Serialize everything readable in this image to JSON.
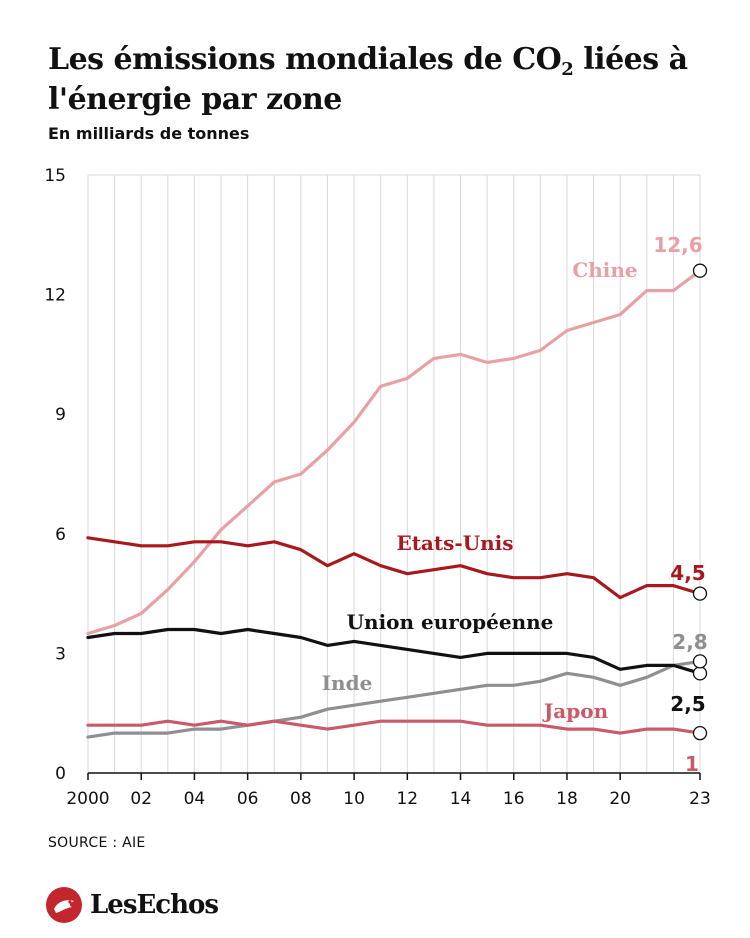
{
  "header": {
    "title_main": "Les émissions mondiales de CO",
    "title_sub": "2",
    "title_rest": " liées à l'énergie par zone",
    "subtitle": "En milliards de tonnes"
  },
  "footer": {
    "source": "SOURCE : AIE",
    "logo_text": "LesEchos"
  },
  "chart_data": {
    "type": "line",
    "ylim": [
      0,
      15
    ],
    "y_ticks": [
      0,
      3,
      6,
      9,
      12,
      15
    ],
    "x_ticks": [
      2000,
      2002,
      2004,
      2006,
      2008,
      2010,
      2012,
      2014,
      2016,
      2018,
      2020,
      2023
    ],
    "x_tick_labels": [
      "2000",
      "02",
      "04",
      "06",
      "08",
      "10",
      "12",
      "14",
      "16",
      "18",
      "20",
      "23"
    ],
    "x": [
      2000,
      2001,
      2002,
      2003,
      2004,
      2005,
      2006,
      2007,
      2008,
      2009,
      2010,
      2011,
      2012,
      2013,
      2014,
      2015,
      2016,
      2017,
      2018,
      2019,
      2020,
      2021,
      2022,
      2023
    ],
    "grid": "vertical",
    "series": [
      {
        "name": "Chine",
        "color": "#e8a0a4",
        "end_label": "12,6",
        "values": [
          3.5,
          3.7,
          4.0,
          4.6,
          5.3,
          6.1,
          6.7,
          7.3,
          7.5,
          8.1,
          8.8,
          9.7,
          9.9,
          10.4,
          10.5,
          10.3,
          10.4,
          10.6,
          11.1,
          11.3,
          11.5,
          12.1,
          12.1,
          12.6
        ]
      },
      {
        "name": "Etats-Unis",
        "color": "#a8191d",
        "end_label": "4,5",
        "values": [
          5.9,
          5.8,
          5.7,
          5.7,
          5.8,
          5.8,
          5.7,
          5.8,
          5.6,
          5.2,
          5.5,
          5.2,
          5.0,
          5.1,
          5.2,
          5.0,
          4.9,
          4.9,
          5.0,
          4.9,
          4.4,
          4.7,
          4.7,
          4.5
        ]
      },
      {
        "name": "Union européenne",
        "color": "#111111",
        "end_label": "2,5",
        "values": [
          3.4,
          3.5,
          3.5,
          3.6,
          3.6,
          3.5,
          3.6,
          3.5,
          3.4,
          3.2,
          3.3,
          3.2,
          3.1,
          3.0,
          2.9,
          3.0,
          3.0,
          3.0,
          3.0,
          2.9,
          2.6,
          2.7,
          2.7,
          2.5
        ]
      },
      {
        "name": "Inde",
        "color": "#8f8f8f",
        "end_label": "2,8",
        "values": [
          0.9,
          1.0,
          1.0,
          1.0,
          1.1,
          1.1,
          1.2,
          1.3,
          1.4,
          1.6,
          1.7,
          1.8,
          1.9,
          2.0,
          2.1,
          2.2,
          2.2,
          2.3,
          2.5,
          2.4,
          2.2,
          2.4,
          2.7,
          2.8
        ]
      },
      {
        "name": "Japon",
        "color": "#c95a68",
        "end_label": "1",
        "values": [
          1.2,
          1.2,
          1.2,
          1.3,
          1.2,
          1.3,
          1.2,
          1.3,
          1.2,
          1.1,
          1.2,
          1.3,
          1.3,
          1.3,
          1.3,
          1.2,
          1.2,
          1.2,
          1.1,
          1.1,
          1.0,
          1.1,
          1.1,
          1.0
        ]
      }
    ]
  }
}
